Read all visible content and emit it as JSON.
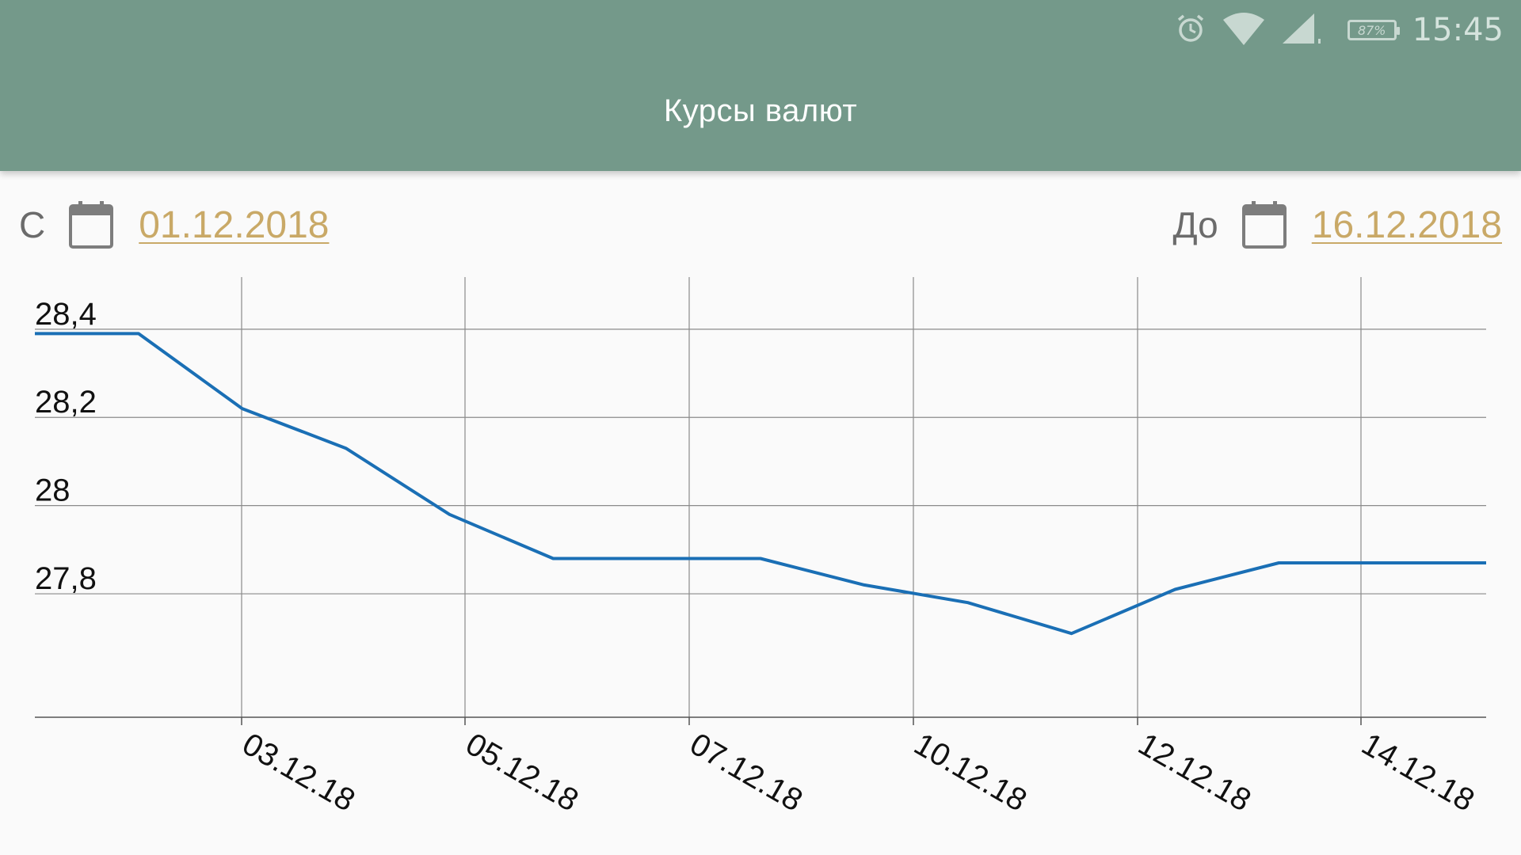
{
  "status_bar": {
    "battery": "87%",
    "time": "15:45",
    "icons": [
      "alarm-icon",
      "wifi-icon",
      "signal-icon",
      "battery-icon"
    ]
  },
  "app_bar": {
    "title": "Курсы валют"
  },
  "date_range": {
    "from_label": "С",
    "from_value": "01.12.2018",
    "to_label": "До",
    "to_value": "16.12.2018"
  },
  "colors": {
    "app_bar": "#74998a",
    "accent": "#c9a967",
    "line": "#1a6fb5",
    "grid": "#8a8a8a"
  },
  "chart_data": {
    "type": "line",
    "title": "",
    "xlabel": "",
    "ylabel": "",
    "grid": true,
    "legend": "none",
    "x_tick_labels": [
      "03.12.18",
      "05.12.18",
      "07.12.18",
      "10.12.18",
      "12.12.18",
      "14.12.18"
    ],
    "y_tick_labels": [
      "28,4",
      "28,2",
      "28",
      "27,8"
    ],
    "y_ticks": [
      28.4,
      28.2,
      28.0,
      27.8
    ],
    "ylim": [
      27.52,
      28.52
    ],
    "series": [
      {
        "values": [
          28.39,
          28.39,
          28.22,
          28.13,
          27.98,
          27.88,
          27.88,
          27.88,
          27.82,
          27.78,
          27.71,
          27.81,
          27.87,
          27.87,
          27.87
        ]
      }
    ]
  }
}
